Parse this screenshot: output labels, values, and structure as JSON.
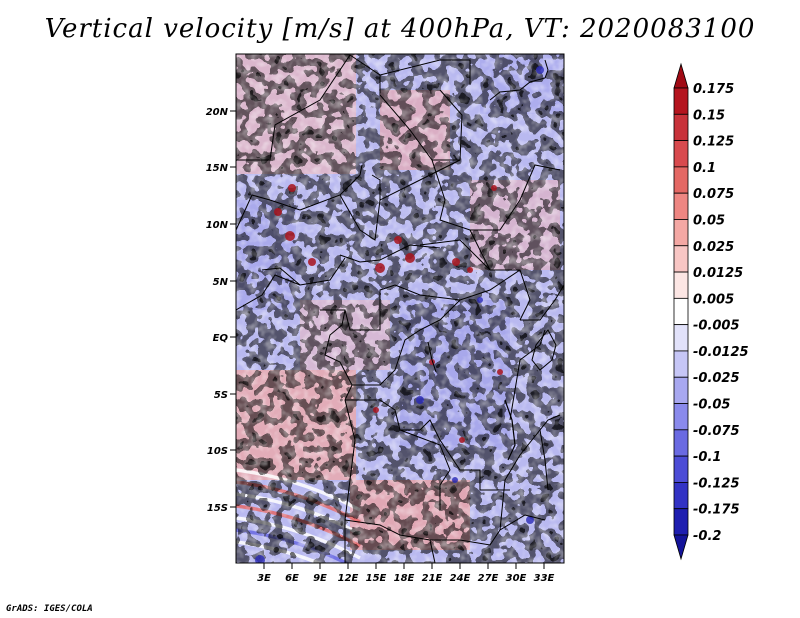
{
  "title": "Vertical velocity [m/s] at 400hPa, VT: 2020083100",
  "footer": "GrADS: IGES/COLA",
  "map": {
    "variable": "Vertical velocity",
    "units": "m/s",
    "level": "400hPa",
    "valid_time": "2020083100",
    "lat_ticks": [
      "20N",
      "15N",
      "10N",
      "5N",
      "EQ",
      "5S",
      "10S",
      "15S"
    ],
    "lon_ticks": [
      "3E",
      "6E",
      "9E",
      "12E",
      "15E",
      "18E",
      "21E",
      "24E",
      "27E",
      "30E",
      "33E"
    ]
  },
  "colorbar": {
    "labels": [
      "0.175",
      "0.15",
      "0.125",
      "0.1",
      "0.075",
      "0.05",
      "0.025",
      "0.0125",
      "0.005",
      "-0.005",
      "-0.0125",
      "-0.025",
      "-0.05",
      "-0.075",
      "-0.1",
      "-0.125",
      "-0.175",
      "-0.2"
    ],
    "colors": [
      "#a00a14",
      "#b4141e",
      "#c8323a",
      "#d84a4e",
      "#e46864",
      "#ee8682",
      "#f4a8a4",
      "#f8c6c4",
      "#fce6e4",
      "#ffffff",
      "#e2e2fa",
      "#c6c6f6",
      "#a8a8f0",
      "#8a8aec",
      "#6a6ae2",
      "#4c4cd6",
      "#3232c4",
      "#1e1eb0",
      "#14149a"
    ]
  }
}
